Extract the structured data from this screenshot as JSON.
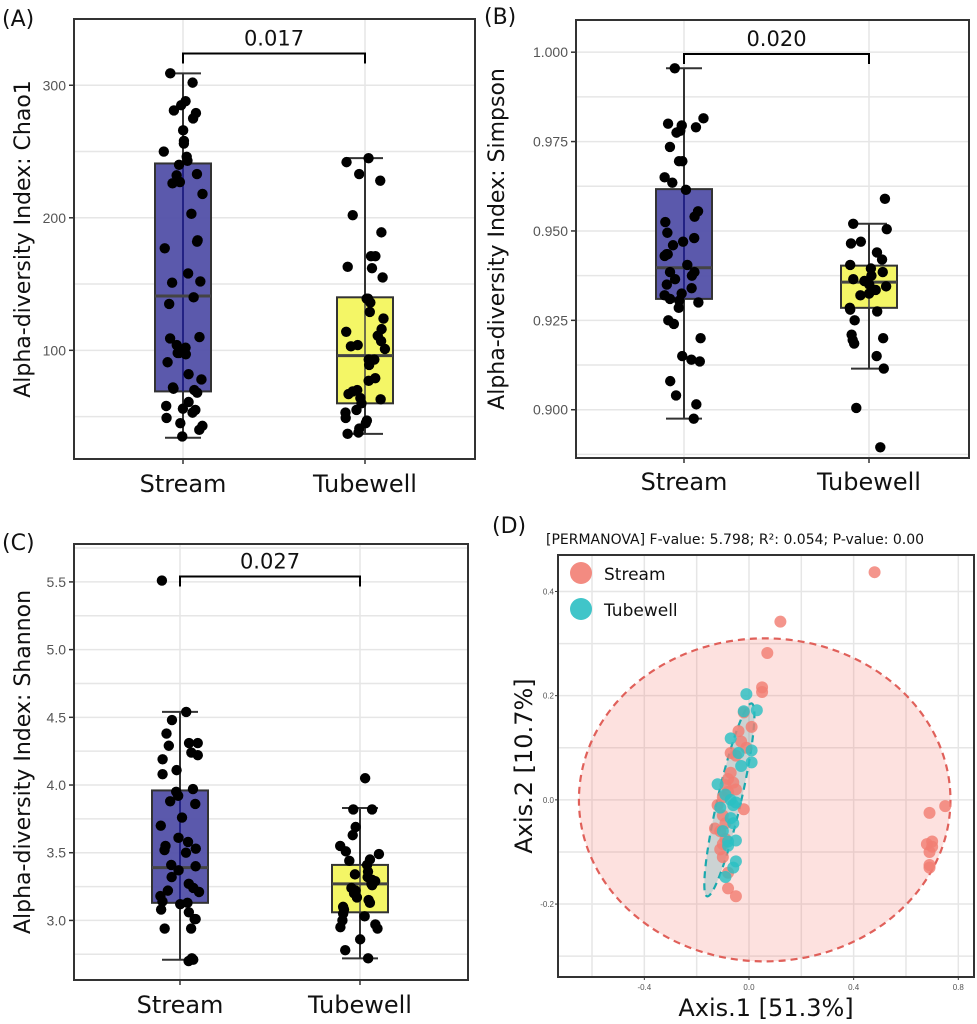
{
  "chart_data": [
    {
      "panel": "(A)",
      "type": "box",
      "ylabel": "Alpha-diversity Index: Chao1",
      "categories": [
        "Stream",
        "Tubewell"
      ],
      "yticks": [
        100,
        200,
        300
      ],
      "ylim": [
        18,
        350
      ],
      "grid": true,
      "significance": {
        "label": "0.017",
        "y": 324
      },
      "boxes": [
        {
          "name": "Stream",
          "color": "#5250a8",
          "q1": 69,
          "median": 141,
          "q3": 241,
          "whisker_low": 34,
          "whisker_high": 309
        },
        {
          "name": "Tubewell",
          "color": "#f3f55e",
          "q1": 60,
          "median": 96,
          "q3": 140,
          "whisker_low": 37,
          "whisker_high": 245
        }
      ],
      "points": [
        [
          309,
          302,
          288,
          285,
          281,
          279,
          275,
          266,
          258,
          256,
          250,
          246,
          243,
          240,
          233,
          232,
          227,
          226,
          218,
          203,
          183,
          182,
          177,
          158,
          152,
          151,
          140,
          135,
          110,
          109,
          104,
          102,
          98,
          98,
          97,
          91,
          82,
          78,
          72,
          71,
          70,
          68,
          61,
          58,
          56,
          55,
          53,
          49,
          45,
          43,
          40,
          35
        ],
        [
          245,
          242,
          233,
          228,
          202,
          189,
          171,
          171,
          163,
          162,
          155,
          139,
          139,
          136,
          129,
          124,
          116,
          114,
          111,
          107,
          104,
          103,
          101,
          93,
          93,
          89,
          79,
          77,
          70,
          69,
          67,
          64,
          63,
          60,
          55,
          53,
          49,
          47,
          45,
          41,
          38,
          37
        ]
      ]
    },
    {
      "panel": "(B)",
      "type": "box",
      "ylabel": "Alpha-diversity Index: Simpson",
      "categories": [
        "Stream",
        "Tubewell"
      ],
      "yticks": [
        0.9,
        0.925,
        0.95,
        0.975,
        1.0
      ],
      "ytick_labels": [
        "0.900",
        "0.925",
        "0.950",
        "0.975",
        "1.000"
      ],
      "ylim": [
        0.8865,
        1.009
      ],
      "grid": true,
      "significance": {
        "label": "0.020",
        "y": 0.9995
      },
      "boxes": [
        {
          "name": "Stream",
          "color": "#5250a8",
          "q1": 0.931,
          "median": 0.9397,
          "q3": 0.9617,
          "whisker_low": 0.8975,
          "whisker_high": 0.9955
        },
        {
          "name": "Tubewell",
          "color": "#f3f55e",
          "q1": 0.9285,
          "median": 0.9357,
          "q3": 0.9403,
          "whisker_low": 0.9115,
          "whisker_high": 0.952
        }
      ],
      "points": [
        [
          0.9955,
          0.9815,
          0.98,
          0.9795,
          0.979,
          0.978,
          0.9775,
          0.9735,
          0.9695,
          0.9695,
          0.965,
          0.9635,
          0.9615,
          0.9555,
          0.954,
          0.9525,
          0.9495,
          0.948,
          0.947,
          0.946,
          0.9435,
          0.9435,
          0.943,
          0.9405,
          0.9385,
          0.9385,
          0.9375,
          0.9365,
          0.935,
          0.934,
          0.9325,
          0.932,
          0.931,
          0.9305,
          0.93,
          0.9285,
          0.924,
          0.925,
          0.92,
          0.915,
          0.914,
          0.9135,
          0.908,
          0.904,
          0.9015,
          0.8975
        ],
        [
          0.959,
          0.952,
          0.9505,
          0.947,
          0.9465,
          0.944,
          0.942,
          0.9405,
          0.9395,
          0.9385,
          0.9375,
          0.9365,
          0.936,
          0.935,
          0.9345,
          0.9335,
          0.9325,
          0.932,
          0.9285,
          0.928,
          0.9275,
          0.925,
          0.921,
          0.92,
          0.9195,
          0.9185,
          0.915,
          0.9115,
          0.9005,
          0.8895
        ]
      ]
    },
    {
      "panel": "(C)",
      "type": "box",
      "ylabel": "Alpha-diversity Index: Shannon",
      "categories": [
        "Stream",
        "Tubewell"
      ],
      "yticks": [
        3.0,
        3.5,
        4.0,
        4.5,
        5.0,
        5.5
      ],
      "ytick_labels": [
        "3.0",
        "3.5",
        "4.0",
        "4.5",
        "5.0",
        "5.5"
      ],
      "ylim": [
        2.56,
        5.78
      ],
      "grid": true,
      "significance": {
        "label": "0.027",
        "y": 5.54
      },
      "boxes": [
        {
          "name": "Stream",
          "color": "#5250a8",
          "q1": 3.13,
          "median": 3.39,
          "q3": 3.96,
          "whisker_low": 2.71,
          "whisker_high": 4.54
        },
        {
          "name": "Tubewell",
          "color": "#f3f55e",
          "q1": 3.06,
          "median": 3.27,
          "q3": 3.41,
          "whisker_low": 2.72,
          "whisker_high": 3.83
        }
      ],
      "points": [
        [
          5.51,
          4.54,
          4.48,
          4.38,
          4.31,
          4.31,
          4.29,
          4.24,
          4.22,
          4.19,
          4.11,
          4.08,
          3.97,
          3.95,
          3.92,
          3.88,
          3.86,
          3.76,
          3.7,
          3.61,
          3.58,
          3.55,
          3.53,
          3.52,
          3.5,
          3.41,
          3.4,
          3.37,
          3.32,
          3.27,
          3.24,
          3.22,
          3.21,
          3.18,
          3.14,
          3.13,
          3.12,
          3.08,
          3.06,
          3.01,
          3.01,
          2.94,
          2.94,
          2.72,
          2.71,
          2.7
        ],
        [
          4.05,
          3.82,
          3.82,
          3.69,
          3.63,
          3.55,
          3.51,
          3.49,
          3.45,
          3.44,
          3.41,
          3.36,
          3.34,
          3.32,
          3.3,
          3.29,
          3.27,
          3.26,
          3.24,
          3.22,
          3.2,
          3.17,
          3.15,
          3.13,
          3.1,
          3.08,
          3.05,
          3.03,
          3.0,
          2.97,
          2.95,
          2.94,
          2.86,
          2.78,
          2.72
        ]
      ]
    },
    {
      "panel": "(D)",
      "type": "scatter",
      "title": "[PERMANOVA] F-value: 5.798; R²: 0.054; P-value: 0.00",
      "xlabel": "Axis.1 [51.3%]",
      "ylabel": "Axis.2 [10.7%]",
      "xticks": [
        -0.4,
        0.0,
        0.4,
        0.8
      ],
      "xtick_labels": [
        "-0.4",
        "0.0",
        "0.4",
        "0.8"
      ],
      "yticks": [
        -0.2,
        0.0,
        0.2,
        0.4
      ],
      "ytick_labels": [
        "-0.2",
        "0.0",
        "0.2",
        "0.4"
      ],
      "xlim": [
        -0.73,
        0.86
      ],
      "ylim": [
        -0.34,
        0.47
      ],
      "grid": true,
      "legend": {
        "position": "top-left",
        "entries": [
          "Stream",
          "Tubewell"
        ]
      },
      "series": [
        {
          "name": "Stream",
          "color": "#f27e73",
          "ellipse": {
            "cx": 0.06,
            "cy": 0.0,
            "rx": 0.71,
            "ry": 0.31,
            "angle": 0
          },
          "points": [
            [
              0.48,
              0.437
            ],
            [
              0.12,
              0.342
            ],
            [
              0.07,
              0.282
            ],
            [
              0.05,
              0.216
            ],
            [
              0.05,
              0.207
            ],
            [
              -0.02,
              0.168
            ],
            [
              0.01,
              0.14
            ],
            [
              -0.04,
              0.132
            ],
            [
              -0.03,
              0.112
            ],
            [
              -0.01,
              0.1
            ],
            [
              -0.07,
              0.09
            ],
            [
              -0.05,
              0.085
            ],
            [
              -0.07,
              0.052
            ],
            [
              -0.08,
              0.04
            ],
            [
              -0.06,
              0.033
            ],
            [
              -0.09,
              0.028
            ],
            [
              -0.05,
              0.02
            ],
            [
              -0.08,
              0.015
            ],
            [
              -0.1,
              0.005
            ],
            [
              -0.02,
              -0.018
            ],
            [
              -0.12,
              -0.01
            ],
            [
              -0.1,
              -0.03
            ],
            [
              -0.09,
              -0.045
            ],
            [
              -0.11,
              -0.06
            ],
            [
              -0.13,
              -0.055
            ],
            [
              -0.09,
              -0.075
            ],
            [
              -0.1,
              -0.085
            ],
            [
              -0.11,
              -0.095
            ],
            [
              -0.1,
              -0.11
            ],
            [
              -0.08,
              -0.14
            ],
            [
              -0.08,
              -0.17
            ],
            [
              -0.05,
              -0.185
            ],
            [
              0.69,
              -0.025
            ],
            [
              0.75,
              -0.012
            ],
            [
              0.7,
              -0.08
            ],
            [
              0.68,
              -0.085
            ],
            [
              0.7,
              -0.09
            ],
            [
              0.69,
              -0.1
            ],
            [
              0.69,
              -0.125
            ],
            [
              0.69,
              -0.13
            ]
          ]
        },
        {
          "name": "Tubewell",
          "color": "#2bbfc3",
          "ellipse": {
            "cx": -0.075,
            "cy": 0.0,
            "rx": 0.045,
            "ry": 0.19,
            "angle": 13
          },
          "points": [
            [
              -0.01,
              0.203
            ],
            [
              0.03,
              0.172
            ],
            [
              -0.02,
              0.17
            ],
            [
              -0.07,
              0.118
            ],
            [
              0.01,
              0.095
            ],
            [
              -0.04,
              0.09
            ],
            [
              0.01,
              0.072
            ],
            [
              -0.03,
              0.065
            ],
            [
              -0.12,
              0.03
            ],
            [
              -0.09,
              0.01
            ],
            [
              -0.07,
              0.0
            ],
            [
              -0.05,
              -0.005
            ],
            [
              -0.11,
              -0.015
            ],
            [
              -0.07,
              -0.035
            ],
            [
              -0.06,
              -0.045
            ],
            [
              -0.05,
              -0.078
            ],
            [
              -0.08,
              -0.08
            ],
            [
              -0.05,
              -0.118
            ],
            [
              -0.06,
              -0.13
            ],
            [
              -0.09,
              -0.148
            ],
            [
              -0.08,
              -0.088
            ],
            [
              -0.1,
              -0.06
            ],
            [
              -0.06,
              -0.01
            ]
          ]
        }
      ]
    }
  ]
}
